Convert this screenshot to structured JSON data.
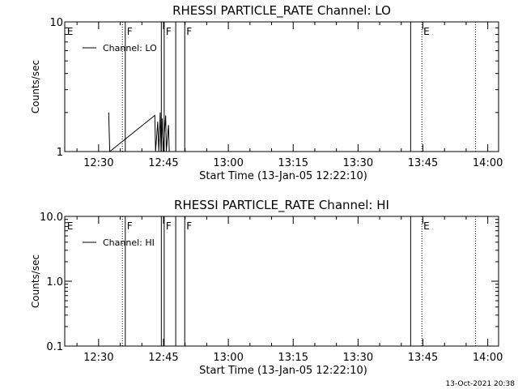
{
  "footer": {
    "timestamp": "13-Oct-2021 20:38"
  },
  "chart_data": [
    {
      "type": "line",
      "title": "RHESSI PARTICLE_RATE Channel: LO",
      "xlabel": "Start Time (13-Jan-05 12:22:10)",
      "ylabel": "Counts/sec",
      "xlim": [
        "12:22:10",
        "14:02:30"
      ],
      "ylim": [
        1,
        10
      ],
      "yscale": "log",
      "x_ticks": [
        "12:30",
        "12:45",
        "13:00",
        "13:15",
        "13:30",
        "13:45",
        "14:00"
      ],
      "y_ticks": [
        "1",
        "10"
      ],
      "legend": {
        "position": "top-left",
        "entries": [
          "Channel: LO"
        ]
      },
      "series": [
        {
          "name": "Channel: LO",
          "color": "#000000",
          "points": [
            [
              "12:32:20",
              2.0
            ],
            [
              "12:32:35",
              1.0
            ],
            [
              "12:43:00",
              1.9
            ],
            [
              "12:43:10",
              1.0
            ],
            [
              "12:43:40",
              1.7
            ],
            [
              "12:43:55",
              1.0
            ],
            [
              "12:44:15",
              2.0
            ],
            [
              "12:44:25",
              1.0
            ],
            [
              "12:44:45",
              1.8
            ],
            [
              "12:44:55",
              1.0
            ],
            [
              "12:45:30",
              1.9
            ],
            [
              "12:45:40",
              1.0
            ],
            [
              "12:46:10",
              1.6
            ],
            [
              "12:46:20",
              1.0
            ]
          ]
        }
      ],
      "events": [
        {
          "time": "12:22:20",
          "flag": "E",
          "style": "none"
        },
        {
          "time": "12:35:30",
          "flag": "",
          "style": "dotted"
        },
        {
          "time": "12:36:10",
          "flag": "F",
          "style": "solid"
        },
        {
          "time": "12:44:30",
          "flag": "",
          "style": "solid"
        },
        {
          "time": "12:45:10",
          "flag": "F",
          "style": "solid"
        },
        {
          "time": "12:47:50",
          "flag": "",
          "style": "solid"
        },
        {
          "time": "12:49:55",
          "flag": "F",
          "style": "solid"
        },
        {
          "time": "13:42:10",
          "flag": "",
          "style": "solid"
        },
        {
          "time": "13:44:45",
          "flag": "E",
          "style": "dotted"
        },
        {
          "time": "13:57:10",
          "flag": "",
          "style": "dotted"
        }
      ]
    },
    {
      "type": "line",
      "title": "RHESSI PARTICLE_RATE Channel: HI",
      "xlabel": "Start Time (13-Jan-05 12:22:10)",
      "ylabel": "Counts/sec",
      "xlim": [
        "12:22:10",
        "14:02:30"
      ],
      "ylim": [
        0.1,
        10
      ],
      "yscale": "log",
      "x_ticks": [
        "12:30",
        "12:45",
        "13:00",
        "13:15",
        "13:30",
        "13:45",
        "14:00"
      ],
      "y_ticks": [
        "0.1",
        "1.0",
        "10.0"
      ],
      "legend": {
        "position": "top-left",
        "entries": [
          "Channel: HI"
        ]
      },
      "series": [
        {
          "name": "Channel: HI",
          "color": "#000000",
          "points": []
        }
      ],
      "events": [
        {
          "time": "12:22:20",
          "flag": "E",
          "style": "none"
        },
        {
          "time": "12:35:30",
          "flag": "",
          "style": "dotted"
        },
        {
          "time": "12:36:10",
          "flag": "F",
          "style": "solid"
        },
        {
          "time": "12:44:30",
          "flag": "",
          "style": "solid"
        },
        {
          "time": "12:45:10",
          "flag": "F",
          "style": "solid"
        },
        {
          "time": "12:47:50",
          "flag": "",
          "style": "solid"
        },
        {
          "time": "12:49:55",
          "flag": "F",
          "style": "solid"
        },
        {
          "time": "13:42:10",
          "flag": "",
          "style": "solid"
        },
        {
          "time": "13:44:45",
          "flag": "E",
          "style": "dotted"
        },
        {
          "time": "13:57:10",
          "flag": "",
          "style": "dotted"
        }
      ]
    }
  ]
}
